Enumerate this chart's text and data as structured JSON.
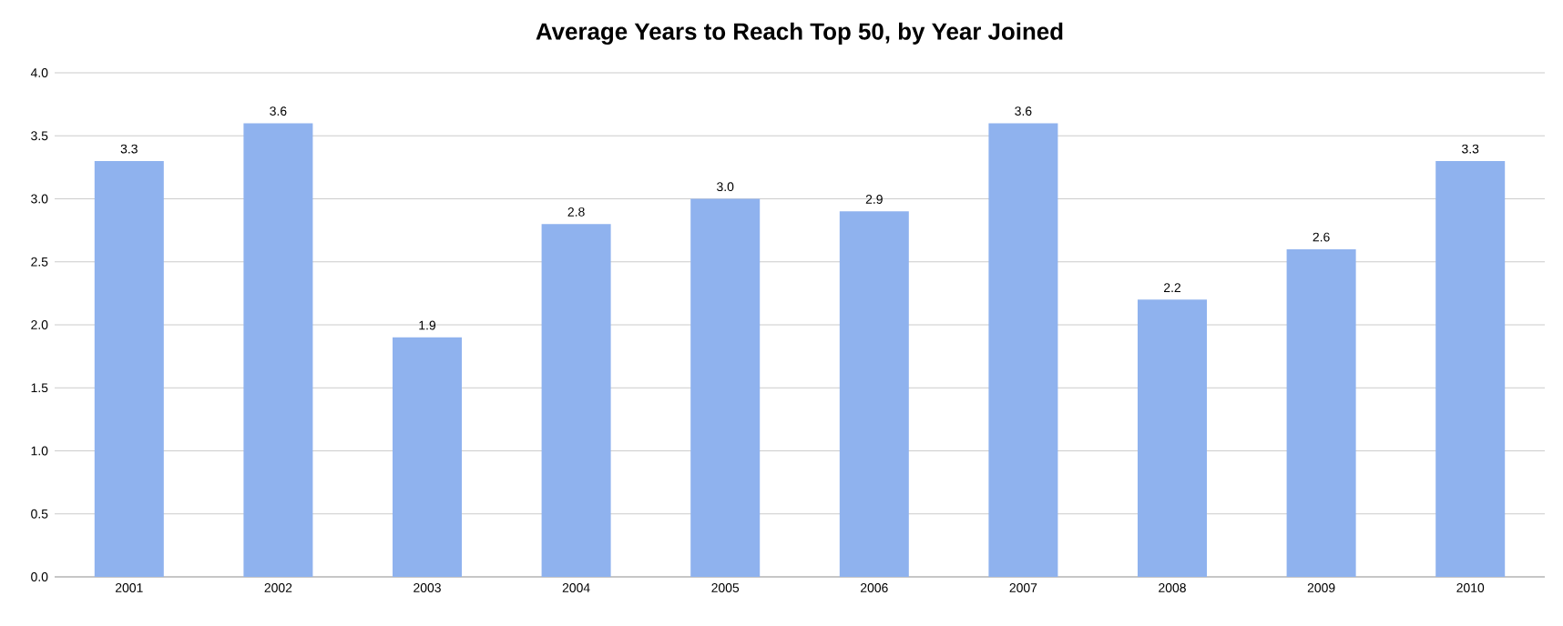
{
  "chart_data": {
    "type": "bar",
    "title": "Average Years to Reach Top 50, by Year Joined",
    "categories": [
      "2001",
      "2002",
      "2003",
      "2004",
      "2005",
      "2006",
      "2007",
      "2008",
      "2009",
      "2010"
    ],
    "values": [
      3.3,
      3.6,
      1.9,
      2.8,
      3.0,
      2.9,
      3.6,
      2.2,
      2.6,
      3.3
    ],
    "value_labels": [
      "3.3",
      "3.6",
      "1.9",
      "2.8",
      "3.0",
      "2.9",
      "3.6",
      "2.2",
      "2.6",
      "3.3"
    ],
    "color": "#8fb2ee",
    "ylim": [
      0,
      4
    ],
    "yticks": [
      {
        "value": 0,
        "label": "0.0"
      },
      {
        "value": 0.5,
        "label": "0.5"
      },
      {
        "value": 1,
        "label": "1.0"
      },
      {
        "value": 1.5,
        "label": "1.5"
      },
      {
        "value": 2,
        "label": "2.0"
      },
      {
        "value": 2.5,
        "label": "2.5"
      },
      {
        "value": 3,
        "label": "3.0"
      },
      {
        "value": 3.5,
        "label": "3.5"
      },
      {
        "value": 4,
        "label": "4.0"
      }
    ],
    "grid": "y"
  }
}
